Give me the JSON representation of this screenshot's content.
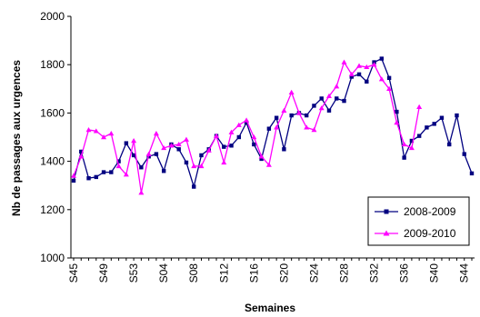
{
  "chart_data": {
    "type": "line",
    "title": "",
    "xlabel": "Semaines",
    "ylabel": "Nb de passages aux urgences",
    "ylim": [
      1000,
      2000
    ],
    "yticks": [
      1000,
      1200,
      1400,
      1600,
      1800,
      2000
    ],
    "grid": false,
    "legend_position": "bottom-right",
    "x": [
      "S45",
      "S46",
      "S47",
      "S48",
      "S49",
      "S50",
      "S51",
      "S52",
      "S53",
      "S01",
      "S02",
      "S03",
      "S04",
      "S05",
      "S06",
      "S07",
      "S08",
      "S09",
      "S10",
      "S11",
      "S12",
      "S13",
      "S14",
      "S15",
      "S16",
      "S17",
      "S18",
      "S19",
      "S20",
      "S21",
      "S22",
      "S23",
      "S24",
      "S25",
      "S26",
      "S27",
      "S28",
      "S29",
      "S30",
      "S31",
      "S32",
      "S33",
      "S34",
      "S35",
      "S36",
      "S37",
      "S38",
      "S39",
      "S40",
      "S41",
      "S42",
      "S43",
      "S44",
      "S45"
    ],
    "x_tick_labels": [
      "S45",
      "S49",
      "S53",
      "S04",
      "S08",
      "S12",
      "S16",
      "S20",
      "S24",
      "S28",
      "S32",
      "S36",
      "S40",
      "S44"
    ],
    "series": [
      {
        "name": "2008-2009",
        "color": "#000080",
        "marker": "square",
        "values": [
          1320,
          1440,
          1330,
          1335,
          1355,
          1355,
          1400,
          1475,
          1425,
          1375,
          1420,
          1430,
          1360,
          1470,
          1450,
          1395,
          1295,
          1425,
          1450,
          1505,
          1460,
          1465,
          1500,
          1560,
          1470,
          1410,
          1535,
          1580,
          1450,
          1590,
          1600,
          1590,
          1630,
          1660,
          1610,
          1660,
          1650,
          1750,
          1760,
          1730,
          1810,
          1825,
          1745,
          1605,
          1415,
          1485,
          1505,
          1540,
          1555,
          1580,
          1470,
          1590,
          1430,
          1350
        ]
      },
      {
        "name": "2009-2010",
        "color": "#ff00ff",
        "marker": "triangle",
        "values": [
          1340,
          1420,
          1530,
          1525,
          1500,
          1515,
          1380,
          1345,
          1485,
          1270,
          1430,
          1515,
          1455,
          1465,
          1470,
          1490,
          1380,
          1380,
          1445,
          1505,
          1395,
          1520,
          1550,
          1570,
          1500,
          1420,
          1385,
          1540,
          1610,
          1685,
          1600,
          1540,
          1530,
          1620,
          1670,
          1710,
          1810,
          1760,
          1795,
          1790,
          1800,
          1740,
          1700,
          1560,
          1470,
          1455,
          1625,
          null,
          null,
          null,
          null,
          null,
          null,
          null
        ]
      }
    ]
  }
}
